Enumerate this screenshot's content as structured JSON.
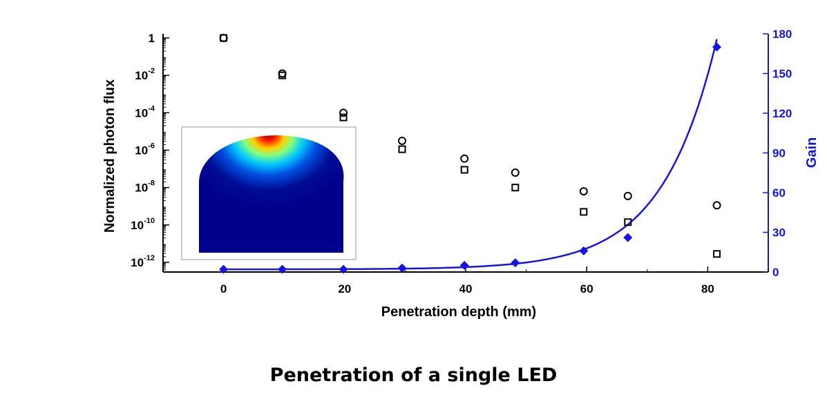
{
  "chart_data": {
    "type": "scatter",
    "xlabel": "Penetration depth (mm)",
    "ylabel": "Normalized photon flux",
    "y2label": "Gain",
    "xlim": [
      -10,
      90
    ],
    "ylim_log10": [
      -13,
      0.2
    ],
    "y2lim": [
      0,
      180
    ],
    "x_ticks": [
      0,
      20,
      40,
      60,
      80
    ],
    "y_ticks": [
      {
        "base": "1",
        "exp": ""
      },
      {
        "base": "10",
        "exp": "-2"
      },
      {
        "base": "10",
        "exp": "-4"
      },
      {
        "base": "10",
        "exp": "-6"
      },
      {
        "base": "10",
        "exp": "-8"
      },
      {
        "base": "10",
        "exp": "-10"
      },
      {
        "base": "10",
        "exp": "-12"
      }
    ],
    "y_tick_exponents": [
      0,
      -2,
      -4,
      -6,
      -8,
      -10,
      -12
    ],
    "y2_ticks": [
      0,
      30,
      60,
      90,
      120,
      150,
      180
    ],
    "series": [
      {
        "name": "circle",
        "marker": "circle",
        "axis": "left",
        "x": [
          0,
          9.7,
          19.8,
          29.5,
          39.8,
          48.2,
          59.5,
          66.8,
          81.5
        ],
        "log10_y": [
          0,
          -1.9,
          -4.0,
          -5.5,
          -6.45,
          -7.2,
          -8.2,
          -8.45,
          -8.95
        ]
      },
      {
        "name": "square",
        "marker": "square",
        "axis": "left",
        "x": [
          0,
          9.7,
          19.8,
          29.5,
          39.8,
          48.2,
          59.5,
          66.8,
          81.5
        ],
        "log10_y": [
          0,
          -2.0,
          -4.25,
          -5.95,
          -7.05,
          -8.0,
          -9.3,
          -9.85,
          -11.55
        ]
      },
      {
        "name": "gain",
        "marker": "diamond",
        "axis": "right",
        "color": "#1414e6",
        "x": [
          0,
          9.7,
          19.8,
          29.5,
          39.8,
          48.2,
          59.5,
          66.8,
          81.5
        ],
        "values": [
          2,
          2,
          2,
          3,
          5,
          7,
          16,
          26,
          170
        ]
      }
    ],
    "fit_curve": {
      "name": "gain fit",
      "axis": "right",
      "color": "#1414e6",
      "model": "exponential",
      "a": 0.02,
      "b": 0.1113,
      "c": 2
    }
  },
  "caption": "Penetration of a single LED",
  "colors": {
    "gain": "#1414e6",
    "black": "#000000"
  }
}
